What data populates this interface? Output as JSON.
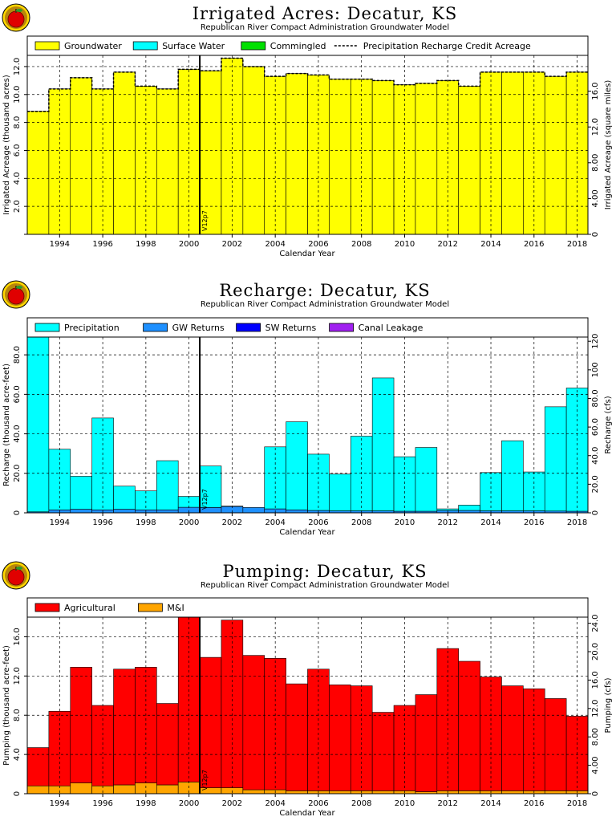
{
  "charts": [
    {
      "title": "Irrigated Acres: Decatur, KS",
      "subtitle": "Republican River Compact Administration Groundwater Model",
      "ylabel": "Irrigated Acreage (thousand acres)",
      "ylabel_right": "Irrigated Acreage (square miles)",
      "xlabel": "Calendar Year",
      "marker_label": "V12p7",
      "legend": [
        {
          "label": "Groundwater",
          "color": "#ffff00",
          "kind": "box"
        },
        {
          "label": "Surface Water",
          "color": "#00ffff",
          "kind": "box"
        },
        {
          "label": "Commingled",
          "color": "#00e000",
          "kind": "box"
        },
        {
          "label": "Precipitation Recharge Credit Acreage",
          "color": "#000000",
          "kind": "dash"
        }
      ]
    },
    {
      "title": "Recharge: Decatur, KS",
      "subtitle": "Republican River Compact Administration Groundwater Model",
      "ylabel": "Recharge (thousand acre-feet)",
      "ylabel_right": "Recharge (cfs)",
      "xlabel": "Calendar Year",
      "marker_label": "V12p7",
      "legend": [
        {
          "label": "Precipitation",
          "color": "#00ffff",
          "kind": "box"
        },
        {
          "label": "GW Returns",
          "color": "#1e90ff",
          "kind": "box"
        },
        {
          "label": "SW Returns",
          "color": "#0000ff",
          "kind": "box"
        },
        {
          "label": "Canal Leakage",
          "color": "#a020f0",
          "kind": "box"
        }
      ]
    },
    {
      "title": "Pumping: Decatur, KS",
      "subtitle": "Republican River Compact Administration Groundwater Model",
      "ylabel": "Pumping (thousand acre-feet)",
      "ylabel_right": "Pumping (cfs)",
      "xlabel": "Calendar Year",
      "marker_label": "V12p7",
      "legend": [
        {
          "label": "Agricultural",
          "color": "#ff0000",
          "kind": "box"
        },
        {
          "label": "M&I",
          "color": "#ffa500",
          "kind": "box"
        }
      ]
    }
  ],
  "chart_data": [
    {
      "type": "area",
      "title": "Irrigated Acres: Decatur, KS",
      "xlabel": "Calendar Year",
      "ylabel": "Irrigated Acreage (thousand acres)",
      "x": [
        1993,
        1994,
        1995,
        1996,
        1997,
        1998,
        1999,
        2000,
        2001,
        2002,
        2003,
        2004,
        2005,
        2006,
        2007,
        2008,
        2009,
        2010,
        2011,
        2012,
        2013,
        2014,
        2015,
        2016,
        2017,
        2018
      ],
      "series": [
        {
          "name": "Groundwater",
          "color": "#ffff00",
          "values": [
            8.8,
            10.4,
            11.2,
            10.4,
            11.6,
            10.6,
            10.4,
            11.8,
            11.7,
            12.6,
            12.0,
            11.3,
            11.5,
            11.4,
            11.1,
            11.1,
            11.0,
            10.7,
            10.8,
            11.0,
            10.6,
            11.6,
            11.6,
            11.6,
            11.3,
            11.6
          ]
        },
        {
          "name": "Surface Water",
          "color": "#00ffff",
          "values": [
            0,
            0,
            0,
            0,
            0,
            0,
            0,
            0,
            0,
            0,
            0,
            0,
            0,
            0,
            0,
            0,
            0,
            0,
            0,
            0,
            0,
            0,
            0,
            0,
            0,
            0
          ]
        },
        {
          "name": "Commingled",
          "color": "#00e000",
          "values": [
            0,
            0,
            0,
            0,
            0,
            0,
            0,
            0,
            0,
            0,
            0,
            0,
            0,
            0,
            0,
            0,
            0,
            0,
            0,
            0,
            0,
            0,
            0,
            0,
            0,
            0
          ]
        },
        {
          "name": "Precipitation Recharge Credit Acreage",
          "style": "dashed",
          "values": [
            8.8,
            10.4,
            11.2,
            10.4,
            11.6,
            10.6,
            10.4,
            11.8,
            11.7,
            12.6,
            12.0,
            11.3,
            11.5,
            11.4,
            11.1,
            11.1,
            11.0,
            10.7,
            10.8,
            11.0,
            10.6,
            11.6,
            11.6,
            11.6,
            11.3,
            11.6
          ]
        }
      ],
      "xlim": [
        1992.5,
        2018.5
      ],
      "ylim": [
        0,
        12.8
      ],
      "yticks": [
        0,
        2.0,
        4.0,
        6.0,
        8.0,
        10.0,
        12.0
      ],
      "yticks_labeled": [
        2.0,
        4.0,
        6.0,
        8.0,
        10.0,
        12.0
      ],
      "yticks_right": [
        0,
        4.0,
        8.0,
        12.0,
        16.0
      ],
      "yticks_right_labels": [
        "0",
        "4.00",
        "8.00",
        "12.0",
        "16.0"
      ],
      "right_scale": 1.5625,
      "xticks": [
        1994,
        1996,
        1998,
        2000,
        2002,
        2004,
        2006,
        2008,
        2010,
        2012,
        2014,
        2016,
        2018
      ],
      "marker_x": 2000.5,
      "grid": true,
      "legend_position": "top"
    },
    {
      "type": "area",
      "title": "Recharge: Decatur, KS",
      "xlabel": "Calendar Year",
      "ylabel": "Recharge (thousand acre-feet)",
      "x": [
        1993,
        1994,
        1995,
        1996,
        1997,
        1998,
        1999,
        2000,
        2001,
        2002,
        2003,
        2004,
        2005,
        2006,
        2007,
        2008,
        2009,
        2010,
        2011,
        2012,
        2013,
        2014,
        2015,
        2016,
        2017,
        2018
      ],
      "series": [
        {
          "name": "GW Returns",
          "color": "#1e90ff",
          "values": [
            0.5,
            1.5,
            1.8,
            1.5,
            1.8,
            1.5,
            1.5,
            2.8,
            2.7,
            3.2,
            2.7,
            2.0,
            1.5,
            1.2,
            1.0,
            1.0,
            1.0,
            0.8,
            0.8,
            1.2,
            1.2,
            1.0,
            1.0,
            1.0,
            0.9,
            0.8
          ]
        },
        {
          "name": "SW Returns",
          "color": "#0000ff",
          "values": [
            0,
            0,
            0,
            0,
            0,
            0,
            0,
            0,
            0,
            0,
            0,
            0,
            0,
            0,
            0,
            0,
            0,
            0,
            0,
            0,
            0,
            0,
            0,
            0,
            0,
            0
          ]
        },
        {
          "name": "Canal Leakage",
          "color": "#a020f0",
          "values": [
            0,
            0,
            0,
            0,
            0,
            0,
            0,
            0,
            0,
            0,
            0,
            0,
            0,
            0,
            0,
            0,
            0,
            0,
            0,
            0,
            0,
            0,
            0,
            0,
            0,
            0
          ]
        },
        {
          "name": "Precipitation",
          "color": "#00ffff",
          "values": [
            88.5,
            30.7,
            16.7,
            46.5,
            11.7,
            9.6,
            24.9,
            5.5,
            21.0,
            0.2,
            0,
            31.4,
            44.6,
            28.5,
            18.6,
            37.8,
            67.3,
            27.6,
            32.3,
            0.8,
            2.7,
            19.4,
            35.5,
            19.7,
            52.8,
            62.4
          ]
        }
      ],
      "xlim": [
        1992.5,
        2018.5
      ],
      "ylim": [
        0,
        89
      ],
      "yticks": [
        0,
        20.0,
        40.0,
        60.0,
        80.0
      ],
      "yticks_labeled": [
        0,
        20.0,
        40.0,
        60.0,
        80.0
      ],
      "yticks_right": [
        0,
        20.0,
        40.0,
        60.0,
        80.0,
        100,
        120
      ],
      "yticks_right_labels": [
        "0",
        "20.0",
        "40.0",
        "60.0",
        "80.0",
        "100",
        "120"
      ],
      "right_scale": 1.3812,
      "xticks": [
        1994,
        1996,
        1998,
        2000,
        2002,
        2004,
        2006,
        2008,
        2010,
        2012,
        2014,
        2016,
        2018
      ],
      "marker_x": 2000.5,
      "grid": true,
      "legend_position": "top"
    },
    {
      "type": "area",
      "title": "Pumping: Decatur, KS",
      "xlabel": "Calendar Year",
      "ylabel": "Pumping (thousand acre-feet)",
      "x": [
        1993,
        1994,
        1995,
        1996,
        1997,
        1998,
        1999,
        2000,
        2001,
        2002,
        2003,
        2004,
        2005,
        2006,
        2007,
        2008,
        2009,
        2010,
        2011,
        2012,
        2013,
        2014,
        2015,
        2016,
        2017,
        2018
      ],
      "series": [
        {
          "name": "M&I",
          "color": "#ffa500",
          "values": [
            0.8,
            0.8,
            1.1,
            0.8,
            0.9,
            1.1,
            0.9,
            1.2,
            0.6,
            0.6,
            0.4,
            0.4,
            0.3,
            0.3,
            0.3,
            0.3,
            0.3,
            0.3,
            0.2,
            0.3,
            0.3,
            0.3,
            0.3,
            0.3,
            0.3,
            0.3
          ]
        },
        {
          "name": "Agricultural",
          "color": "#ff0000",
          "values": [
            3.9,
            7.6,
            11.8,
            8.2,
            11.8,
            11.8,
            8.3,
            16.9,
            13.3,
            17.1,
            13.7,
            13.4,
            10.9,
            12.4,
            10.8,
            10.7,
            8.0,
            8.7,
            9.9,
            14.5,
            13.2,
            11.6,
            10.7,
            10.4,
            9.4,
            7.6
          ]
        }
      ],
      "xlim": [
        1992.5,
        2018.5
      ],
      "ylim": [
        0,
        18
      ],
      "yticks": [
        0,
        4.0,
        8.0,
        12.0,
        16.0
      ],
      "yticks_labeled": [
        0,
        4.0,
        8.0,
        12.0,
        16.0
      ],
      "yticks_right": [
        0,
        4.0,
        8.0,
        12.0,
        16.0,
        20.0,
        24.0
      ],
      "yticks_right_labels": [
        "0",
        "4.00",
        "8.00",
        "12.0",
        "16.0",
        "20.0",
        "24.0"
      ],
      "right_scale": 1.3812,
      "xticks": [
        1994,
        1996,
        1998,
        2000,
        2002,
        2004,
        2006,
        2008,
        2010,
        2012,
        2014,
        2016,
        2018
      ],
      "marker_x": 2000.5,
      "grid": true,
      "legend_position": "top"
    }
  ]
}
